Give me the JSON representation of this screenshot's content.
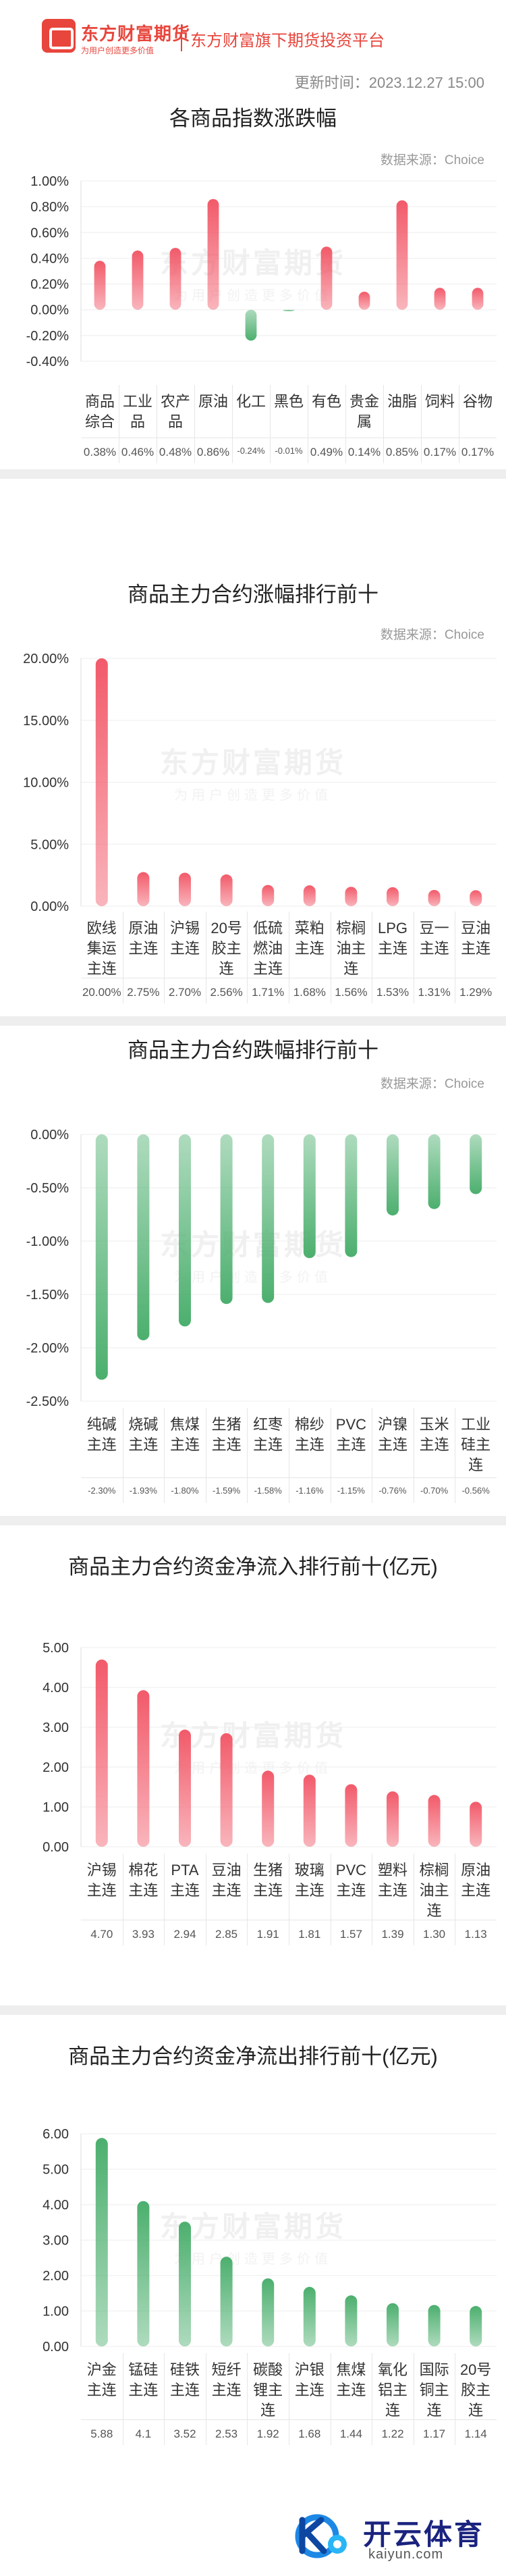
{
  "header": {
    "brand_name": "东方财富期货",
    "slogan": "为用户创造更多价值",
    "platform": "东方财富旗下期货投资平台",
    "update_label": "更新时间：",
    "update_time": "2023.12.27 15:00"
  },
  "watermark": {
    "line1": "东方财富期货",
    "line2": "为用户创造更多价值"
  },
  "footer": {
    "brand": "开云体育",
    "url": "kaiyun.com"
  },
  "sections": [
    {
      "title": "各商品指数涨跌幅",
      "source_label": "数据来源：",
      "source": "Choice"
    },
    {
      "title": "商品主力合约涨幅排行前十",
      "source_label": "数据来源：",
      "source": "Choice"
    },
    {
      "title": "商品主力合约跌幅排行前十",
      "source_label": "数据来源：",
      "source": "Choice"
    },
    {
      "title": "商品主力合约资金净流入排行前十(亿元)",
      "source_label": "",
      "source": ""
    },
    {
      "title": "商品主力合约资金净流出排行前十(亿元)",
      "source_label": "",
      "source": ""
    }
  ],
  "chart_data": [
    {
      "type": "bar",
      "title": "各商品指数涨跌幅",
      "categories": [
        "商品综合",
        "工业品",
        "农产品",
        "原油",
        "化工",
        "黑色",
        "有色",
        "贵金属",
        "油脂",
        "饲料",
        "谷物"
      ],
      "values": [
        0.38,
        0.46,
        0.48,
        0.86,
        -0.24,
        -0.01,
        0.49,
        0.14,
        0.85,
        0.17,
        0.17
      ],
      "value_labels": [
        "0.38%",
        "0.46%",
        "0.48%",
        "0.86%",
        "-0.24%",
        "-0.01%",
        "0.49%",
        "0.14%",
        "0.85%",
        "0.17%",
        "0.17%"
      ],
      "yticks": [
        "-0.40%",
        "-0.20%",
        "0.00%",
        "0.20%",
        "0.40%",
        "0.60%",
        "0.80%",
        "1.00%"
      ],
      "ylim": [
        -0.4,
        1.0
      ],
      "unit": "%",
      "colors": {
        "positive": "#f25a6a",
        "negative": "#4caf6e"
      }
    },
    {
      "type": "bar",
      "title": "商品主力合约涨幅排行前十",
      "categories": [
        "欧线集运主连",
        "原油主连",
        "沪锡主连",
        "20号胶主连",
        "低硫燃油主连",
        "菜粕主连",
        "棕榈油主连",
        "LPG主连",
        "豆一主连",
        "豆油主连"
      ],
      "values": [
        20.0,
        2.75,
        2.7,
        2.56,
        1.71,
        1.68,
        1.56,
        1.53,
        1.31,
        1.29
      ],
      "value_labels": [
        "20.00%",
        "2.75%",
        "2.70%",
        "2.56%",
        "1.71%",
        "1.68%",
        "1.56%",
        "1.53%",
        "1.31%",
        "1.29%"
      ],
      "yticks": [
        "0.00%",
        "5.00%",
        "10.00%",
        "15.00%",
        "20.00%"
      ],
      "ylim": [
        0,
        20
      ],
      "unit": "%",
      "colors": {
        "positive": "#f25a6a",
        "negative": "#4caf6e"
      }
    },
    {
      "type": "bar",
      "title": "商品主力合约跌幅排行前十",
      "categories": [
        "纯碱主连",
        "烧碱主连",
        "焦煤主连",
        "生猪主连",
        "红枣主连",
        "棉纱主连",
        "PVC主连",
        "沪镍主连",
        "玉米主连",
        "工业硅主连"
      ],
      "values": [
        -2.3,
        -1.93,
        -1.8,
        -1.59,
        -1.58,
        -1.16,
        -1.15,
        -0.76,
        -0.7,
        -0.56
      ],
      "value_labels": [
        "-2.30%",
        "-1.93%",
        "-1.80%",
        "-1.59%",
        "-1.58%",
        "-1.16%",
        "-1.15%",
        "-0.76%",
        "-0.70%",
        "-0.56%"
      ],
      "yticks": [
        "-2.50%",
        "-2.00%",
        "-1.50%",
        "-1.00%",
        "-0.50%",
        "0.00%"
      ],
      "ylim": [
        -2.5,
        0
      ],
      "unit": "%",
      "colors": {
        "positive": "#f25a6a",
        "negative": "#4caf6e"
      }
    },
    {
      "type": "bar",
      "title": "商品主力合约资金净流入排行前十(亿元)",
      "categories": [
        "沪锡主连",
        "棉花主连",
        "PTA主连",
        "豆油主连",
        "生猪主连",
        "玻璃主连",
        "PVC主连",
        "塑料主连",
        "棕榈油主连",
        "原油主连"
      ],
      "values": [
        4.7,
        3.93,
        2.94,
        2.85,
        1.91,
        1.81,
        1.57,
        1.39,
        1.3,
        1.13
      ],
      "value_labels": [
        "4.70",
        "3.93",
        "2.94",
        "2.85",
        "1.91",
        "1.81",
        "1.57",
        "1.39",
        "1.30",
        "1.13"
      ],
      "yticks": [
        "0.00",
        "1.00",
        "2.00",
        "3.00",
        "4.00",
        "5.00"
      ],
      "ylim": [
        0,
        5
      ],
      "unit": "亿元",
      "colors": {
        "positive": "#f25a6a",
        "negative": "#4caf6e"
      }
    },
    {
      "type": "bar",
      "title": "商品主力合约资金净流出排行前十(亿元)",
      "categories": [
        "沪金主连",
        "锰硅主连",
        "硅铁主连",
        "短纤主连",
        "碳酸锂主连",
        "沪银主连",
        "焦煤主连",
        "氧化铝主连",
        "国际铜主连",
        "20号胶主连"
      ],
      "values": [
        5.88,
        4.1,
        3.52,
        2.53,
        1.92,
        1.68,
        1.44,
        1.22,
        1.17,
        1.14
      ],
      "value_labels": [
        "5.88",
        "4.1",
        "3.52",
        "2.53",
        "1.92",
        "1.68",
        "1.44",
        "1.22",
        "1.17",
        "1.14"
      ],
      "yticks": [
        "0.00",
        "1.00",
        "2.00",
        "3.00",
        "4.00",
        "5.00",
        "6.00"
      ],
      "ylim": [
        0,
        6
      ],
      "unit": "亿元",
      "colors": {
        "positive": "#4caf6e",
        "negative": "#4caf6e"
      }
    }
  ]
}
